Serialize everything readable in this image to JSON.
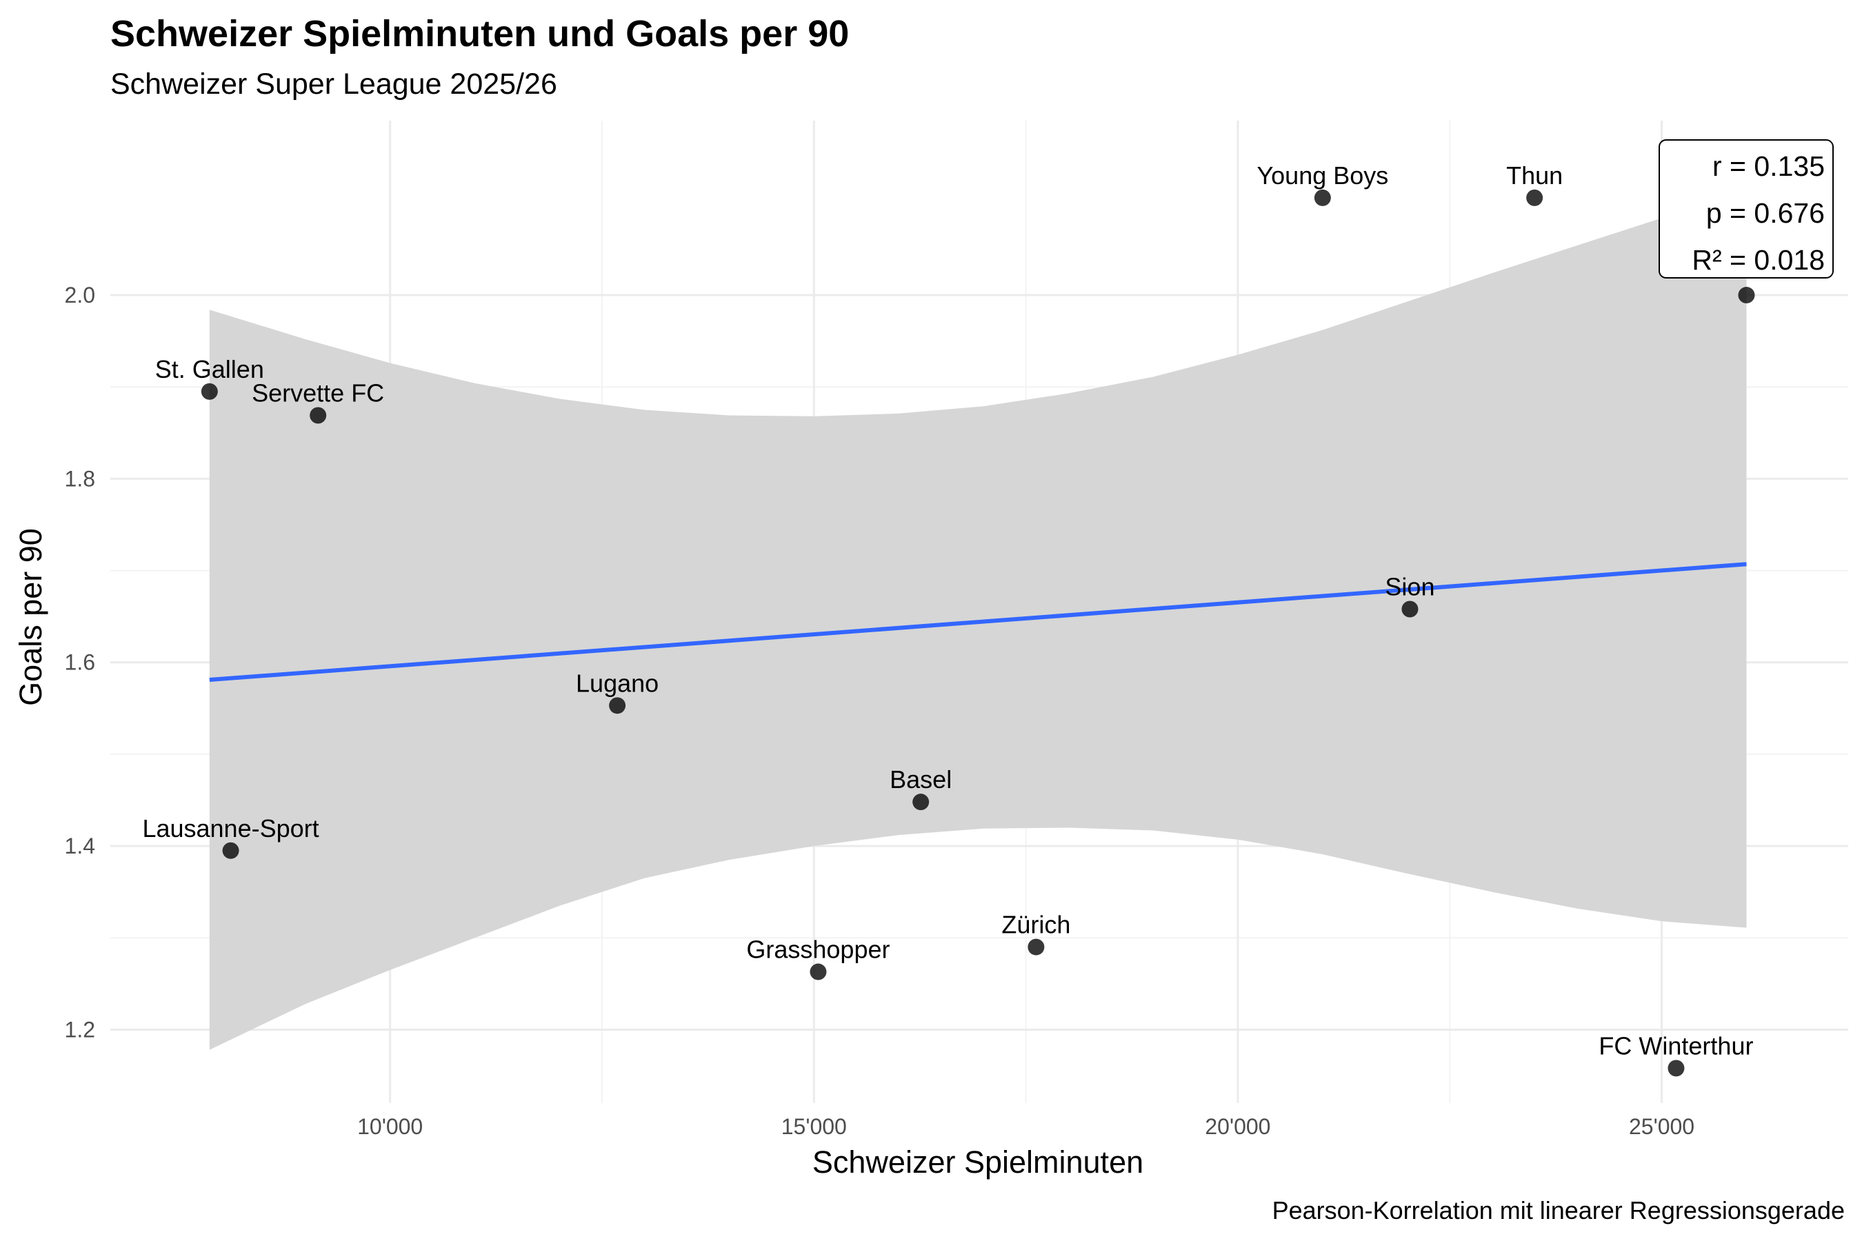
{
  "chart_data": {
    "type": "scatter",
    "title": "Schweizer Spielminuten und Goals per 90",
    "subtitle": "Schweizer Super League 2025/26",
    "xlabel": "Schweizer Spielminuten",
    "ylabel": "Goals per 90",
    "caption": "Pearson-Korrelation mit linearer Regressionsgerade",
    "xlim": [
      6700,
      27200
    ],
    "ylim": [
      1.12,
      2.19
    ],
    "x_ticks": [
      10000,
      15000,
      20000,
      25000
    ],
    "x_tick_labels": [
      "10'000",
      "15'000",
      "20'000",
      "25'000"
    ],
    "y_ticks": [
      1.2,
      1.4,
      1.6,
      1.8,
      2.0
    ],
    "y_tick_labels": [
      "1.2",
      "1.4",
      "1.6",
      "1.8",
      "2.0"
    ],
    "grid": true,
    "points": [
      {
        "label": "St. Gallen",
        "x": 7870,
        "y": 1.895
      },
      {
        "label": "Servette FC",
        "x": 9150,
        "y": 1.869
      },
      {
        "label": "Lausanne-Sport",
        "x": 8120,
        "y": 1.395
      },
      {
        "label": "Lugano",
        "x": 12680,
        "y": 1.553
      },
      {
        "label": "Grasshopper",
        "x": 15050,
        "y": 1.263
      },
      {
        "label": "Basel",
        "x": 16260,
        "y": 1.448
      },
      {
        "label": "Zürich",
        "x": 17620,
        "y": 1.29
      },
      {
        "label": "Young Boys",
        "x": 21000,
        "y": 2.106
      },
      {
        "label": "Sion",
        "x": 22030,
        "y": 1.658
      },
      {
        "label": "Thun",
        "x": 23500,
        "y": 2.106
      },
      {
        "label": "FC Winterthur",
        "x": 25170,
        "y": 1.158
      },
      {
        "label": "",
        "x": 26000,
        "y": 2.0
      }
    ],
    "regression": {
      "x0": 7870,
      "y0": 1.581,
      "x1": 26000,
      "y1": 1.707
    },
    "confidence_band": {
      "x": [
        7870,
        9000,
        10000,
        11000,
        12000,
        13000,
        14000,
        15000,
        16000,
        17000,
        18000,
        19000,
        20000,
        21000,
        22000,
        23000,
        24000,
        25000,
        26000
      ],
      "upper": [
        1.984,
        1.952,
        1.926,
        1.904,
        1.887,
        1.875,
        1.869,
        1.868,
        1.871,
        1.879,
        1.893,
        1.911,
        1.935,
        1.962,
        1.993,
        2.024,
        2.054,
        2.084,
        2.103
      ],
      "lower": [
        1.178,
        1.228,
        1.265,
        1.3,
        1.335,
        1.365,
        1.385,
        1.4,
        1.412,
        1.419,
        1.42,
        1.417,
        1.407,
        1.391,
        1.37,
        1.35,
        1.332,
        1.318,
        1.311
      ]
    },
    "stats": {
      "r": "r = 0.135",
      "p": "p = 0.676",
      "r2": "R² = 0.018"
    },
    "colors": {
      "line": "#3366ff",
      "band": "#d6d6d6",
      "grid": "#ebebeb",
      "point": "#000000"
    }
  }
}
